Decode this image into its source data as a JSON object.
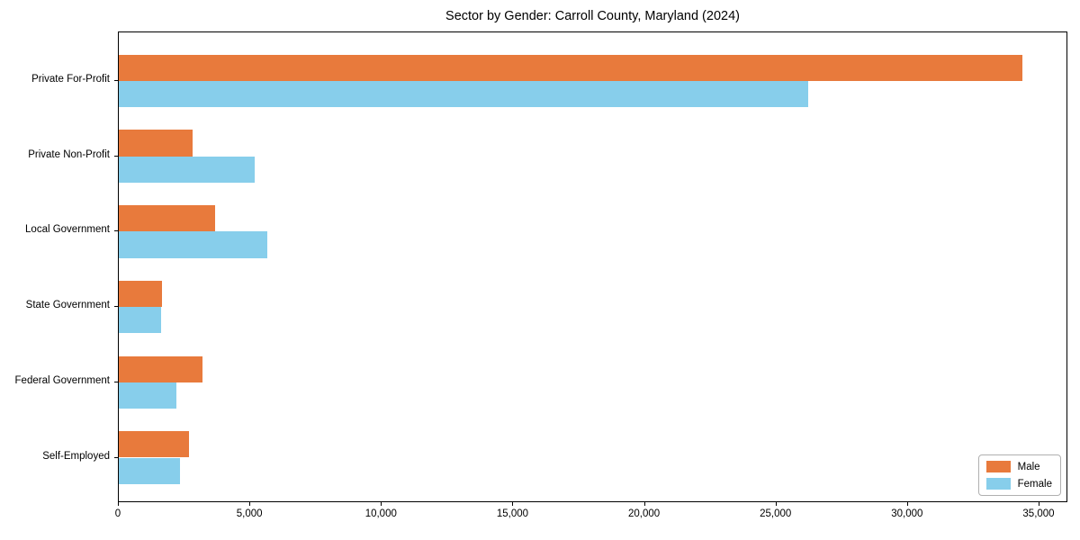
{
  "chart_data": {
    "type": "bar",
    "orientation": "horizontal",
    "title": "Sector by Gender: Carroll County, Maryland (2024)",
    "xlabel": "",
    "ylabel": "",
    "categories": [
      "Private For-Profit",
      "Private Non-Profit",
      "Local Government",
      "State Government",
      "Federal Government",
      "Self-Employed"
    ],
    "series": [
      {
        "name": "Male",
        "color": "#e87a3c",
        "values": [
          34350,
          2800,
          3660,
          1640,
          3180,
          2670
        ]
      },
      {
        "name": "Female",
        "color": "#87ceeb",
        "values": [
          26200,
          5150,
          5650,
          1600,
          2190,
          2325
        ]
      }
    ],
    "xlim": [
      0,
      35000
    ],
    "xticks": [
      0,
      5000,
      10000,
      15000,
      20000,
      25000,
      30000,
      35000
    ],
    "xtick_labels": [
      "0",
      "5,000",
      "10,000",
      "15,000",
      "20,000",
      "25,000",
      "30,000",
      "35,000"
    ],
    "grid": false,
    "legend_position": "lower right",
    "frame_color": "#000000",
    "background_color": "#ffffff"
  }
}
